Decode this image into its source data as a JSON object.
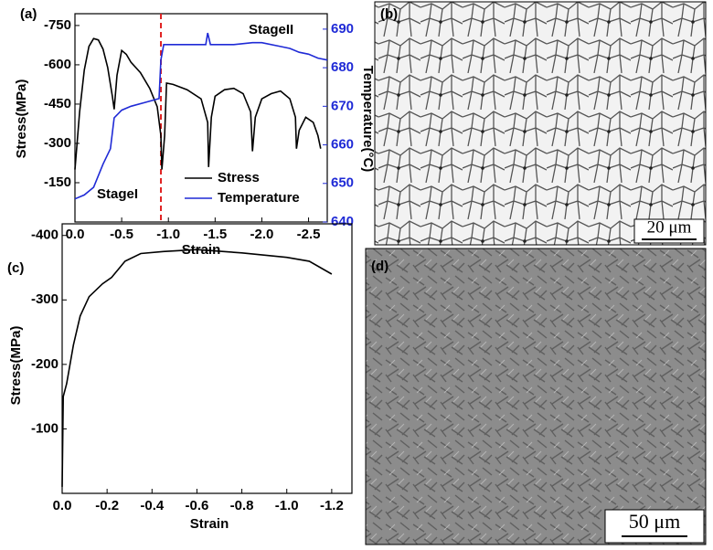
{
  "chart_data": [
    {
      "type": "line",
      "label": "(a)",
      "x_label": "Strain",
      "y_label": "Stress(MPa)",
      "y2_label": "Temperature(°C)",
      "xlim": [
        0,
        -2.7
      ],
      "xticks": [
        {
          "value": 0,
          "label": "0.0"
        },
        -0.5,
        {
          "value": -1,
          "label": "-1.0"
        },
        -1.5,
        {
          "value": -2,
          "label": "-2.0"
        },
        -2.5
      ],
      "ylim": [
        0,
        -795
      ],
      "yticks": [
        -150,
        -300,
        -450,
        -600,
        -750
      ],
      "y2lim": [
        640,
        694
      ],
      "y2ticks": [
        640,
        650,
        660,
        670,
        680,
        690
      ],
      "vline": {
        "x": -0.92,
        "color": "#e02020"
      },
      "annotations": [
        "StageI",
        "StageII"
      ],
      "series": [
        {
          "name": "Stress",
          "color": "#000000",
          "x": [
            0,
            -0.05,
            -0.1,
            -0.15,
            -0.2,
            -0.25,
            -0.3,
            -0.35,
            -0.4,
            -0.42,
            -0.45,
            -0.5,
            -0.55,
            -0.6,
            -0.7,
            -0.8,
            -0.88,
            -0.92,
            -0.93,
            -0.96,
            -0.98,
            -1.05,
            -1.2,
            -1.35,
            -1.42,
            -1.43,
            -1.46,
            -1.5,
            -1.6,
            -1.7,
            -1.8,
            -1.88,
            -1.9,
            -1.93,
            -2.0,
            -2.1,
            -2.2,
            -2.3,
            -2.36,
            -2.37,
            -2.4,
            -2.47,
            -2.55,
            -2.6,
            -2.63
          ],
          "values": [
            -200,
            -420,
            -580,
            -670,
            -700,
            -695,
            -660,
            -590,
            -480,
            -430,
            -560,
            -655,
            -640,
            -610,
            -570,
            -510,
            -440,
            -330,
            -200,
            -330,
            -530,
            -525,
            -505,
            -470,
            -380,
            -210,
            -400,
            -480,
            -505,
            -510,
            -490,
            -420,
            -270,
            -400,
            -470,
            -490,
            -500,
            -470,
            -400,
            -280,
            -350,
            -400,
            -380,
            -330,
            -280
          ]
        },
        {
          "name": "Temperature",
          "color": "#1f2ad6",
          "axis": "y2",
          "x": [
            0,
            -0.1,
            -0.2,
            -0.3,
            -0.38,
            -0.42,
            -0.5,
            -0.6,
            -0.75,
            -0.9,
            -0.92,
            -0.95,
            -1.1,
            -1.4,
            -1.42,
            -1.45,
            -1.7,
            -1.9,
            -2.0,
            -2.2,
            -2.3,
            -2.4,
            -2.5,
            -2.6,
            -2.7
          ],
          "values": [
            646,
            647,
            649,
            655,
            659,
            667,
            669,
            670,
            671,
            672,
            682,
            686,
            686,
            686,
            689,
            686,
            686,
            686.5,
            686.5,
            685.5,
            685,
            684,
            683.5,
            682.5,
            682
          ]
        }
      ]
    },
    {
      "type": "line",
      "label": "(c)",
      "x_label": "Strain",
      "y_label": "Stress(MPa)",
      "color": "#000000",
      "xlim": [
        0,
        -1.29
      ],
      "xticks": [
        {
          "value": 0,
          "label": "0.0"
        },
        -0.2,
        -0.4,
        -0.6,
        -0.8,
        {
          "value": -1,
          "label": "-1.0"
        },
        -1.2
      ],
      "ylim": [
        0,
        -418
      ],
      "yticks": [
        -100,
        -200,
        -300,
        -400
      ],
      "x": [
        0,
        -0.005,
        -0.02,
        -0.05,
        -0.08,
        -0.12,
        -0.18,
        -0.22,
        -0.28,
        -0.35,
        -0.45,
        -0.6,
        -0.8,
        -1.0,
        -1.1,
        -1.2
      ],
      "values": [
        -10,
        -150,
        -170,
        -230,
        -275,
        -305,
        -325,
        -335,
        -360,
        -372,
        -375,
        -378,
        -373,
        -366,
        -360,
        -340
      ]
    }
  ],
  "images": [
    {
      "label": "(b)",
      "scale_bar": "20 μm"
    },
    {
      "label": "(d)",
      "scale_bar": "50 μm"
    }
  ]
}
